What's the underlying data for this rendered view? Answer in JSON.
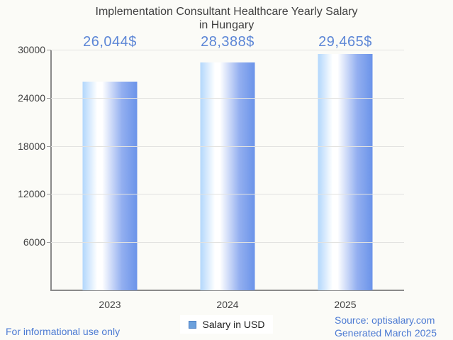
{
  "title": "Implementation Consultant Healthcare Yearly Salary\nin Hungary",
  "chart_data": {
    "type": "bar",
    "title": "Implementation Consultant Healthcare Yearly Salary in Hungary",
    "categories": [
      "2023",
      "2024",
      "2025"
    ],
    "values": [
      26044,
      28388,
      29465
    ],
    "value_labels": [
      "26,044$",
      "28,388$",
      "29,465$"
    ],
    "xlabel": "",
    "ylabel": "",
    "ylim": [
      0,
      30000
    ],
    "yticks": [
      6000,
      12000,
      18000,
      24000,
      30000
    ],
    "grid": true,
    "legend": {
      "label": "Salary in USD",
      "position": "bottom-center"
    }
  },
  "footer": {
    "left": "For informational use only",
    "source": "Source: optisalary.com",
    "generated": "Generated March 2025"
  },
  "colors": {
    "background": "#fbfbf7",
    "title_gray": "#404040",
    "tick_label_gray": "#424242",
    "axis_gray": "#8a8a8a",
    "gridline_gray": "#e2e2e0",
    "value_label_blue": "#5c86d6",
    "footer_link_blue": "#4d7bd3",
    "legend_marker_fill": "#6ca0dc",
    "legend_marker_border": "#4c7fc4",
    "bar_gradient_left": "#b2d7fc",
    "bar_gradient_mid": "#ffffff",
    "bar_gradient_right": "#6a93e9"
  }
}
